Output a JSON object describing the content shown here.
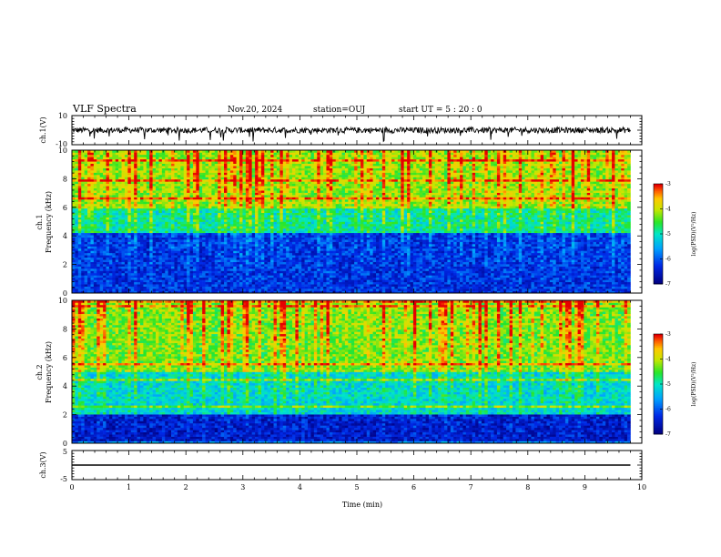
{
  "header": {
    "title": "VLF Spectra",
    "date": "Nov.20, 2024",
    "station": "station=OUJ",
    "start": "start  UT =   5 : 20 : 0"
  },
  "chart_data": [
    {
      "type": "line",
      "name_label": "ch.1(V)",
      "ylabel": "ch.1(V)",
      "ylim": [
        -10,
        10
      ],
      "yticks": [
        "10",
        "-10"
      ],
      "description_values": {
        "baseline": 0,
        "noise_amplitude": 2,
        "spikes_to": -8
      }
    },
    {
      "type": "heatmap",
      "ylabel_top": "ch.1",
      "ylabel": "Frequency  (kHz)",
      "ylim": [
        0,
        10
      ],
      "yticks": [
        "0",
        "2",
        "4",
        "6",
        "8",
        "10"
      ],
      "colorbar": {
        "label": "log(PSD)(V²/Hz)",
        "range": [
          -7,
          -3
        ],
        "ticks": [
          "-3",
          "-4",
          "-5",
          "-6",
          "-7"
        ]
      },
      "bands": [
        {
          "from_khz": 0,
          "to_khz": 4.2,
          "level": -6.3
        },
        {
          "from_khz": 4.2,
          "to_khz": 6,
          "level": -5.0
        },
        {
          "from_khz": 6,
          "to_khz": 10,
          "level": -4.3
        }
      ]
    },
    {
      "type": "heatmap",
      "ylabel_top": "ch.2",
      "ylabel": "Frequency  (kHz)",
      "ylim": [
        0,
        10
      ],
      "yticks": [
        "0",
        "2",
        "4",
        "6",
        "8",
        "10"
      ],
      "colorbar": {
        "label": "log(PSD)(V²/Hz)",
        "range": [
          -7,
          -3
        ],
        "ticks": [
          "-3",
          "-4",
          "-5",
          "-6",
          "-7"
        ]
      },
      "bands": [
        {
          "from_khz": 0,
          "to_khz": 2,
          "level": -6.5
        },
        {
          "from_khz": 2,
          "to_khz": 5,
          "level": -5.2
        },
        {
          "from_khz": 5,
          "to_khz": 10,
          "level": -4.4
        }
      ]
    },
    {
      "type": "line",
      "ylabel": "ch.3(V)",
      "ylim": [
        -5,
        5
      ],
      "yticks": [
        "5",
        "0",
        "-5"
      ],
      "y": 0,
      "xlabel": "Time  (min)",
      "xlim": [
        0,
        10
      ],
      "xticks": [
        "0",
        "1",
        "2",
        "3",
        "4",
        "5",
        "6",
        "7",
        "8",
        "9",
        "10"
      ],
      "data_end_min": 9.8
    }
  ],
  "colors": {
    "axes": "#000000",
    "trace": "#000000",
    "grid": "#000000"
  }
}
